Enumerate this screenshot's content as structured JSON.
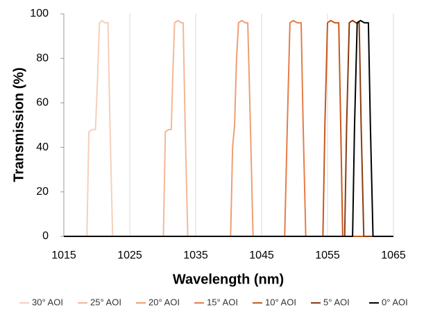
{
  "chart_data": {
    "type": "line",
    "x_label": "Wavelength (nm)",
    "y_label": "Transmission (%)",
    "xlim": [
      1015,
      1065
    ],
    "xticks": [
      1015,
      1025,
      1035,
      1045,
      1055,
      1065
    ],
    "ylim": [
      0,
      100
    ],
    "yticks": [
      0,
      20,
      40,
      60,
      80,
      100
    ],
    "grid": "x",
    "legend": "bottom",
    "series": [
      {
        "name": "30° AOI",
        "color": "#f6cfb9",
        "x": [
          1015,
          1018.5,
          1018.8,
          1019.3,
          1019.8,
          1020.1,
          1020.4,
          1020.8,
          1021.2,
          1021.7,
          1022.0,
          1022.4,
          1065
        ],
        "values": [
          0,
          0,
          47,
          48,
          48,
          70,
          96,
          97,
          96,
          96,
          50,
          0,
          0
        ]
      },
      {
        "name": "25° AOI",
        "color": "#f3b796",
        "x": [
          1015,
          1030.1,
          1030.4,
          1030.9,
          1031.3,
          1031.5,
          1031.8,
          1032.3,
          1032.8,
          1033.1,
          1033.4,
          1033.8,
          1065
        ],
        "values": [
          0,
          0,
          47,
          48,
          48,
          70,
          96,
          97,
          96,
          96,
          50,
          0,
          0
        ]
      },
      {
        "name": "20° AOI",
        "color": "#ee9e72",
        "x": [
          1015,
          1040.3,
          1040.6,
          1040.9,
          1041.2,
          1041.5,
          1042.0,
          1042.5,
          1042.9,
          1043.3,
          1043.7,
          1065
        ],
        "values": [
          0,
          0,
          40,
          50,
          80,
          96,
          97,
          96,
          96,
          50,
          0,
          0
        ]
      },
      {
        "name": "15° AOI",
        "color": "#e67c47",
        "x": [
          1015,
          1048.5,
          1048.9,
          1049.3,
          1049.8,
          1050.4,
          1051.0,
          1051.3,
          1051.7,
          1065
        ],
        "values": [
          0,
          0,
          50,
          96,
          97,
          96,
          96,
          50,
          0,
          0
        ]
      },
      {
        "name": "10° AOI",
        "color": "#c9561c",
        "x": [
          1015,
          1054.3,
          1054.6,
          1055.0,
          1055.5,
          1056.1,
          1056.7,
          1057.0,
          1057.3,
          1065
        ],
        "values": [
          0,
          0,
          50,
          96,
          97,
          96,
          96,
          50,
          0,
          0
        ]
      },
      {
        "name": "5° AOI",
        "color": "#8b3a10",
        "x": [
          1015,
          1057.6,
          1057.9,
          1058.3,
          1058.8,
          1059.3,
          1059.8,
          1060.1,
          1060.5,
          1065
        ],
        "values": [
          0,
          0,
          50,
          96,
          97,
          96,
          96,
          50,
          0,
          0
        ]
      },
      {
        "name": "0° AOI",
        "color": "#000000",
        "x": [
          1015,
          1058.8,
          1059.1,
          1059.5,
          1060.0,
          1060.6,
          1061.2,
          1061.5,
          1061.9,
          1065
        ],
        "values": [
          0,
          0,
          50,
          96,
          97,
          96,
          96,
          50,
          0,
          0
        ]
      }
    ]
  }
}
